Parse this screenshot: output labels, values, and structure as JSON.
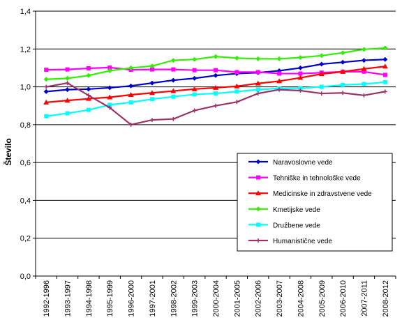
{
  "chart_data": {
    "type": "line",
    "title": "",
    "xlabel": "",
    "ylabel": "Število",
    "ylim": [
      0,
      1.4
    ],
    "yticks": [
      "0,0",
      "0,2",
      "0,4",
      "0,6",
      "0,8",
      "1,0",
      "1,2",
      "1,4"
    ],
    "grid": "horizontal",
    "legend_position": "right-middle",
    "categories": [
      "1992-1996",
      "1993-1997",
      "1994-1998",
      "1995-1999",
      "1996-2000",
      "1997-2001",
      "1998-2002",
      "1999-2003",
      "2000-2004",
      "2001-2005",
      "2002-2006",
      "2003-2007",
      "2004-2008",
      "2005-2009",
      "2006-2010",
      "2007-2011",
      "2008-2012"
    ],
    "series": [
      {
        "name": "Naravoslovne vede",
        "color": "#0000CC",
        "marker": "diamond",
        "values": [
          0.975,
          0.985,
          0.988,
          0.995,
          1.005,
          1.02,
          1.035,
          1.045,
          1.06,
          1.07,
          1.075,
          1.085,
          1.1,
          1.12,
          1.13,
          1.14,
          1.145
        ]
      },
      {
        "name": "Tehniške in tehnološke vede",
        "color": "#FF00FF",
        "marker": "square",
        "values": [
          1.09,
          1.092,
          1.098,
          1.102,
          1.09,
          1.092,
          1.092,
          1.088,
          1.088,
          1.078,
          1.078,
          1.07,
          1.07,
          1.075,
          1.08,
          1.08,
          1.063
        ]
      },
      {
        "name": "Medicinske in zdravstvene vede",
        "color": "#FF0000",
        "marker": "triangle",
        "values": [
          0.918,
          0.928,
          0.937,
          0.945,
          0.958,
          0.968,
          0.978,
          0.988,
          0.995,
          1.003,
          1.018,
          1.03,
          1.048,
          1.068,
          1.08,
          1.095,
          1.108
        ]
      },
      {
        "name": "Kmetijske vede",
        "color": "#33EE00",
        "marker": "diamond",
        "values": [
          1.04,
          1.045,
          1.06,
          1.085,
          1.1,
          1.11,
          1.14,
          1.145,
          1.16,
          1.152,
          1.148,
          1.148,
          1.155,
          1.165,
          1.18,
          1.198,
          1.205
        ]
      },
      {
        "name": "Družbene vede",
        "color": "#00FFFF",
        "marker": "square",
        "values": [
          0.845,
          0.86,
          0.878,
          0.905,
          0.918,
          0.935,
          0.948,
          0.96,
          0.965,
          0.975,
          0.985,
          0.992,
          0.993,
          1.0,
          1.01,
          1.015,
          1.025
        ]
      },
      {
        "name": "Humanistične vede",
        "color": "#993366",
        "marker": "plus",
        "values": [
          1.0,
          1.02,
          0.955,
          0.89,
          0.8,
          0.825,
          0.83,
          0.875,
          0.9,
          0.92,
          0.965,
          0.985,
          0.98,
          0.965,
          0.968,
          0.955,
          0.975
        ]
      }
    ]
  }
}
